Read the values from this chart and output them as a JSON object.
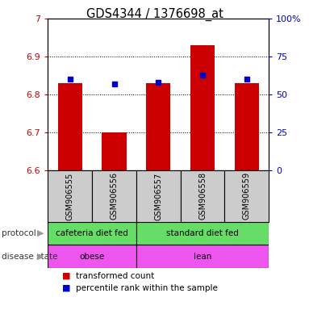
{
  "title": "GDS4344 / 1376698_at",
  "samples": [
    "GSM906555",
    "GSM906556",
    "GSM906557",
    "GSM906558",
    "GSM906559"
  ],
  "transformed_count": [
    6.83,
    6.7,
    6.83,
    6.93,
    6.83
  ],
  "percentile_rank": [
    60,
    57,
    58,
    63,
    60
  ],
  "ylim_left": [
    6.6,
    7.0
  ],
  "ylim_right": [
    0,
    100
  ],
  "yticks_left": [
    6.6,
    6.7,
    6.8,
    6.9,
    7.0
  ],
  "ytick_labels_left": [
    "6.6",
    "6.7",
    "6.8",
    "6.9",
    "7"
  ],
  "yticks_right": [
    0,
    25,
    50,
    75,
    100
  ],
  "ytick_labels_right": [
    "0",
    "25",
    "50",
    "75",
    "100%"
  ],
  "bar_color": "#cc0000",
  "dot_color": "#0000cc",
  "bar_bottom": 6.6,
  "bar_width": 0.55,
  "protocol_labels": [
    "cafeteria diet fed",
    "standard diet fed"
  ],
  "protocol_color": "#66dd66",
  "disease_labels": [
    "obese",
    "lean"
  ],
  "disease_color": "#ee55ee",
  "left_axis_color": "#cc0000",
  "right_axis_color": "#0000cc",
  "background_color": "#ffffff",
  "grid_color": "black",
  "sample_bg_color": "#cccccc",
  "arrow_color": "#999999",
  "label_color": "#333333"
}
